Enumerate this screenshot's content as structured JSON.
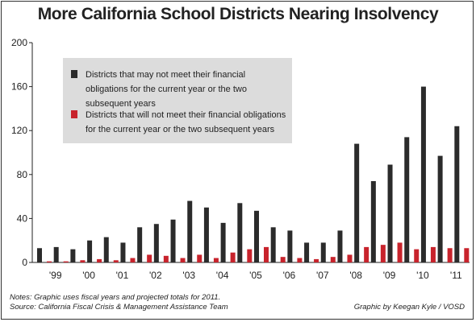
{
  "chart_data": {
    "type": "bar",
    "title": "More California School Districts Nearing Insolvency",
    "xlabel": "",
    "ylabel": "",
    "ylim": [
      0,
      200
    ],
    "yticks": [
      "0",
      "40",
      "80",
      "120",
      "160",
      "200"
    ],
    "xticks": [
      "'99",
      "'00",
      "'01",
      "'02",
      "'03",
      "'04",
      "'05",
      "'06",
      "'07",
      "'08",
      "'09",
      "'10",
      "'11"
    ],
    "grid": false,
    "legend_placement": "top-left",
    "series": [
      {
        "name": "Districts that may not meet their financial obligations for the current year or the two subsequent years",
        "color": "#2b2b2b",
        "values": [
          13,
          14,
          12,
          20,
          23,
          18,
          32,
          35,
          39,
          56,
          50,
          36,
          54,
          47,
          32,
          29,
          18,
          18,
          29,
          108,
          74,
          89,
          114,
          160,
          97,
          124
        ]
      },
      {
        "name": "Districts that will not meet their financial obligations for the current year or the two subsequent years",
        "color": "#c8232c",
        "values": [
          1,
          1,
          2,
          3,
          2,
          4,
          7,
          6,
          4,
          7,
          4,
          9,
          12,
          14,
          5,
          4,
          3,
          5,
          7,
          14,
          16,
          18,
          12,
          14,
          13,
          13
        ]
      }
    ]
  },
  "notes": {
    "line1": "Notes: Graphic uses fiscal years and projected totals for 2011.",
    "line2": "Source: California Fiscal Crisis & Management Assistance Team"
  },
  "credit": "Graphic by Keegan Kyle / VOSD"
}
